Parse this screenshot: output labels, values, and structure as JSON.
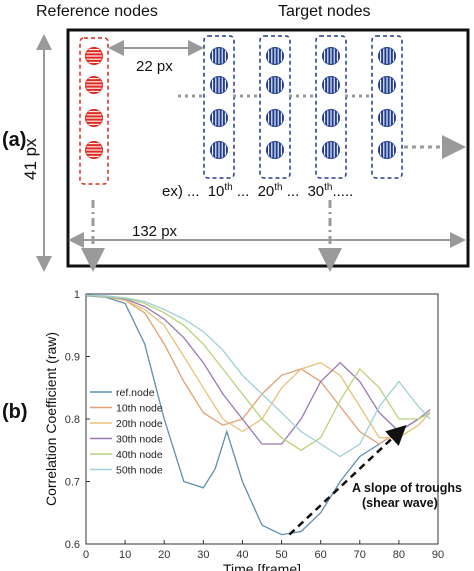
{
  "panel_a": {
    "label": "(a)",
    "header_reference": "Reference nodes",
    "header_target": "Target nodes",
    "dim_height": "41 px",
    "dim_spacing": "22 px",
    "dim_width": "132 px",
    "node_example": {
      "prefix": "ex) ...",
      "items": [
        {
          "num": "10",
          "sup": "th",
          "after": " ..."
        },
        {
          "num": "20",
          "sup": "th",
          "after": " ..."
        },
        {
          "num": "30",
          "sup": "th",
          "after": "....."
        }
      ]
    },
    "colors": {
      "reference": "#dd2a22",
      "target": "#1f3c8f",
      "arrow": "#9a9a9a"
    }
  },
  "panel_b": {
    "label": "(b)",
    "annotation_line1": "A slope of troughs",
    "annotation_line2": "(shear wave)"
  },
  "chart_data": {
    "type": "line",
    "xlabel": "Time [frame]",
    "ylabel": "Correlation Coefficient (raw)",
    "xlim": [
      0,
      90
    ],
    "ylim": [
      0.6,
      1.0
    ],
    "xticks": [
      0,
      10,
      20,
      30,
      40,
      50,
      60,
      70,
      80,
      90
    ],
    "yticks": [
      0.6,
      0.7,
      0.8,
      0.9,
      1
    ],
    "grid": false,
    "legend_position": "left",
    "series": [
      {
        "name": "ref.node",
        "color": "#5f8fb0",
        "x": [
          0,
          5,
          10,
          15,
          20,
          25,
          30,
          33,
          36,
          40,
          45,
          50,
          55,
          60,
          65,
          70,
          75,
          80,
          85,
          88
        ],
        "y": [
          0.997,
          0.995,
          0.985,
          0.92,
          0.8,
          0.7,
          0.69,
          0.72,
          0.78,
          0.7,
          0.63,
          0.615,
          0.62,
          0.65,
          0.7,
          0.74,
          0.76,
          0.78,
          0.8,
          0.81
        ]
      },
      {
        "name": "10th node",
        "color": "#e3a072",
        "x": [
          0,
          5,
          10,
          15,
          20,
          25,
          30,
          35,
          40,
          45,
          50,
          55,
          60,
          65,
          70,
          75,
          80,
          85,
          88
        ],
        "y": [
          0.998,
          0.996,
          0.99,
          0.97,
          0.92,
          0.86,
          0.81,
          0.79,
          0.8,
          0.84,
          0.87,
          0.88,
          0.86,
          0.82,
          0.78,
          0.76,
          0.78,
          0.8,
          0.81
        ]
      },
      {
        "name": "20th node",
        "color": "#e8c27a",
        "x": [
          0,
          5,
          10,
          15,
          20,
          25,
          30,
          35,
          40,
          45,
          50,
          55,
          60,
          65,
          70,
          75,
          80,
          85,
          88
        ],
        "y": [
          0.998,
          0.996,
          0.99,
          0.975,
          0.95,
          0.9,
          0.85,
          0.8,
          0.78,
          0.8,
          0.85,
          0.88,
          0.89,
          0.87,
          0.82,
          0.77,
          0.77,
          0.79,
          0.81
        ]
      },
      {
        "name": "30th node",
        "color": "#9a78b4",
        "x": [
          0,
          5,
          10,
          15,
          20,
          25,
          30,
          35,
          40,
          45,
          50,
          55,
          60,
          65,
          70,
          75,
          80,
          85,
          88
        ],
        "y": [
          0.998,
          0.996,
          0.992,
          0.98,
          0.96,
          0.93,
          0.89,
          0.84,
          0.8,
          0.76,
          0.76,
          0.8,
          0.86,
          0.89,
          0.86,
          0.81,
          0.78,
          0.8,
          0.815
        ]
      },
      {
        "name": "40th node",
        "color": "#b9d27a",
        "x": [
          0,
          5,
          10,
          15,
          20,
          25,
          30,
          35,
          40,
          45,
          50,
          55,
          60,
          65,
          70,
          75,
          80,
          85,
          88
        ],
        "y": [
          0.998,
          0.996,
          0.993,
          0.985,
          0.97,
          0.95,
          0.92,
          0.88,
          0.84,
          0.8,
          0.77,
          0.75,
          0.77,
          0.83,
          0.88,
          0.85,
          0.8,
          0.8,
          0.81
        ]
      },
      {
        "name": "50th node",
        "color": "#9fd0d8",
        "x": [
          0,
          5,
          10,
          15,
          20,
          25,
          30,
          35,
          40,
          45,
          50,
          55,
          60,
          65,
          70,
          75,
          80,
          85,
          88
        ],
        "y": [
          0.998,
          0.997,
          0.994,
          0.988,
          0.975,
          0.96,
          0.94,
          0.91,
          0.87,
          0.84,
          0.81,
          0.78,
          0.76,
          0.74,
          0.76,
          0.82,
          0.86,
          0.82,
          0.8
        ]
      }
    ]
  }
}
